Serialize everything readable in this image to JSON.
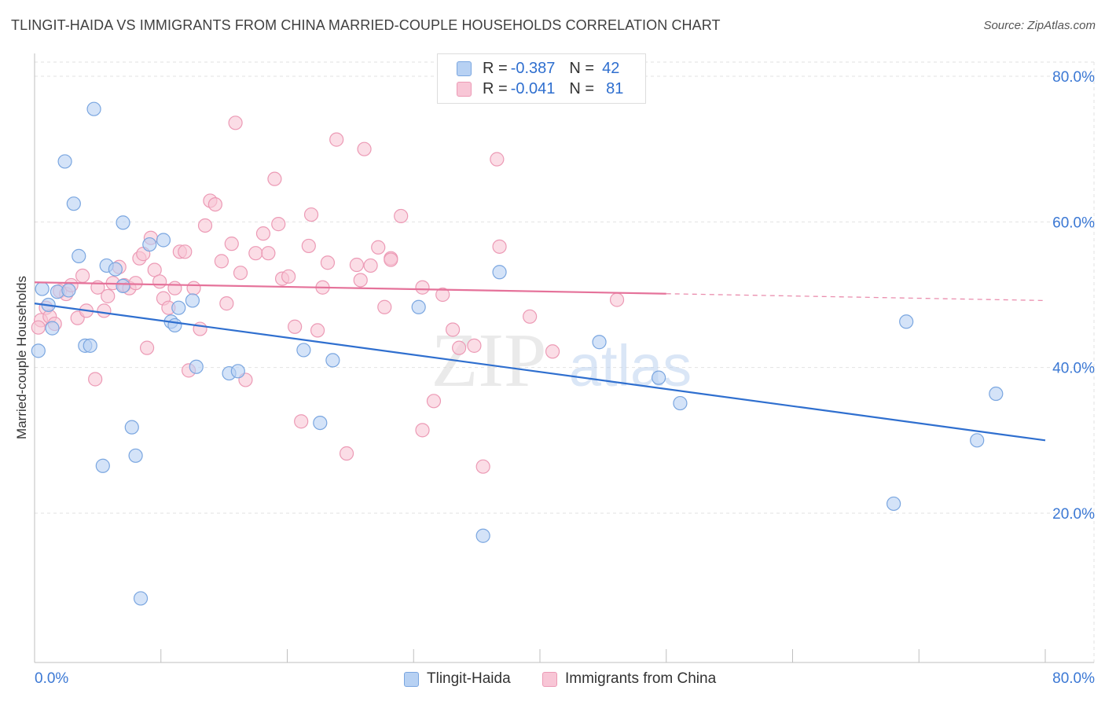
{
  "header": {
    "title": "TLINGIT-HAIDA VS IMMIGRANTS FROM CHINA MARRIED-COUPLE HOUSEHOLDS CORRELATION CHART",
    "source": "Source: ZipAtlas.com"
  },
  "watermark": {
    "zip": "ZIP",
    "atlas": "atlas"
  },
  "legend": {
    "rows": [
      {
        "r_label": "R =",
        "r_value": "-0.387",
        "n_label": "N =",
        "n_value": "42",
        "fill": "#b7d1f3",
        "stroke": "#7aa6e0"
      },
      {
        "r_label": "R =",
        "r_value": "-0.041",
        "n_label": "N =",
        "n_value": "81",
        "fill": "#f8c6d6",
        "stroke": "#ec9ab5"
      }
    ]
  },
  "bottom_legend": {
    "items": [
      {
        "label": "Tlingit-Haida",
        "fill": "#b7d1f3",
        "stroke": "#7aa6e0"
      },
      {
        "label": "Immigrants from China",
        "fill": "#f8c6d6",
        "stroke": "#ec9ab5"
      }
    ]
  },
  "chart_data": {
    "type": "scatter",
    "title": "TLINGIT-HAIDA VS IMMIGRANTS FROM CHINA MARRIED-COUPLE HOUSEHOLDS CORRELATION CHART",
    "xlabel": "",
    "ylabel": "Married-couple Households",
    "xlim": [
      0,
      80
    ],
    "ylim": [
      0,
      82
    ],
    "x_tick_labels": [
      {
        "value": 0,
        "label": "0.0%"
      },
      {
        "value": 80,
        "label": "80.0%"
      }
    ],
    "y_tick_labels": [
      {
        "value": 20,
        "label": "20.0%"
      },
      {
        "value": 40,
        "label": "40.0%"
      },
      {
        "value": 60,
        "label": "60.0%"
      },
      {
        "value": 80,
        "label": "80.0%"
      }
    ],
    "grid": true,
    "series": [
      {
        "name": "Tlingit-Haida",
        "color": "#5b93d9",
        "fill": "#b7d1f3",
        "stroke": "#7aa6e0",
        "trend": {
          "x": [
            0,
            80
          ],
          "y": [
            48.8,
            30.0
          ],
          "dashed_from": null
        },
        "points": [
          [
            0.3,
            42.3
          ],
          [
            0.6,
            50.8
          ],
          [
            1.1,
            48.6
          ],
          [
            1.4,
            45.4
          ],
          [
            1.8,
            50.4
          ],
          [
            2.4,
            68.3
          ],
          [
            2.7,
            50.6
          ],
          [
            3.1,
            62.5
          ],
          [
            3.5,
            55.3
          ],
          [
            4.0,
            43.0
          ],
          [
            4.4,
            43.0
          ],
          [
            4.7,
            75.5
          ],
          [
            5.4,
            26.5
          ],
          [
            5.7,
            54.0
          ],
          [
            6.4,
            53.5
          ],
          [
            7.0,
            51.2
          ],
          [
            7.0,
            59.9
          ],
          [
            7.7,
            31.8
          ],
          [
            8.0,
            27.9
          ],
          [
            8.4,
            8.3
          ],
          [
            9.1,
            56.9
          ],
          [
            10.2,
            57.5
          ],
          [
            10.8,
            46.3
          ],
          [
            11.1,
            45.8
          ],
          [
            11.4,
            48.2
          ],
          [
            12.5,
            49.2
          ],
          [
            12.8,
            40.1
          ],
          [
            15.4,
            39.2
          ],
          [
            16.1,
            39.5
          ],
          [
            21.3,
            42.4
          ],
          [
            22.6,
            32.4
          ],
          [
            23.6,
            41.0
          ],
          [
            30.4,
            48.3
          ],
          [
            35.5,
            16.9
          ],
          [
            36.8,
            53.1
          ],
          [
            44.7,
            43.5
          ],
          [
            49.4,
            38.6
          ],
          [
            51.1,
            35.1
          ],
          [
            69.0,
            46.3
          ],
          [
            74.6,
            30.0
          ],
          [
            76.1,
            36.4
          ],
          [
            68.0,
            21.3
          ]
        ]
      },
      {
        "name": "Immigrants from China",
        "color": "#e8799f",
        "fill": "#f8c6d6",
        "stroke": "#ec9ab5",
        "trend": {
          "x": [
            0,
            80
          ],
          "y": [
            51.7,
            49.2
          ],
          "dashed_from": 50
        },
        "points": [
          [
            0.5,
            46.5
          ],
          [
            0.9,
            48.2
          ],
          [
            1.2,
            47.0
          ],
          [
            1.6,
            46.0
          ],
          [
            2.0,
            50.5
          ],
          [
            2.5,
            50.1
          ],
          [
            2.9,
            51.3
          ],
          [
            3.4,
            46.8
          ],
          [
            3.8,
            52.6
          ],
          [
            4.1,
            47.8
          ],
          [
            4.8,
            38.4
          ],
          [
            5.0,
            51.0
          ],
          [
            5.5,
            47.8
          ],
          [
            5.8,
            49.8
          ],
          [
            6.2,
            51.6
          ],
          [
            6.7,
            53.8
          ],
          [
            7.1,
            51.3
          ],
          [
            7.5,
            50.9
          ],
          [
            8.0,
            51.6
          ],
          [
            8.3,
            55.0
          ],
          [
            8.6,
            55.6
          ],
          [
            8.9,
            42.7
          ],
          [
            9.2,
            57.8
          ],
          [
            9.5,
            53.4
          ],
          [
            9.9,
            51.8
          ],
          [
            10.2,
            49.5
          ],
          [
            10.6,
            48.2
          ],
          [
            11.1,
            50.9
          ],
          [
            11.5,
            55.9
          ],
          [
            11.9,
            55.9
          ],
          [
            12.2,
            39.6
          ],
          [
            12.6,
            50.9
          ],
          [
            13.1,
            45.3
          ],
          [
            13.5,
            59.5
          ],
          [
            13.9,
            62.9
          ],
          [
            14.3,
            62.4
          ],
          [
            14.8,
            54.6
          ],
          [
            15.2,
            48.8
          ],
          [
            15.6,
            57.0
          ],
          [
            15.9,
            73.6
          ],
          [
            16.3,
            53.0
          ],
          [
            16.7,
            38.3
          ],
          [
            17.5,
            55.7
          ],
          [
            18.1,
            58.4
          ],
          [
            18.5,
            55.7
          ],
          [
            19.0,
            65.9
          ],
          [
            19.3,
            59.7
          ],
          [
            19.6,
            52.2
          ],
          [
            20.1,
            52.5
          ],
          [
            20.6,
            45.6
          ],
          [
            21.1,
            32.6
          ],
          [
            21.7,
            56.7
          ],
          [
            21.9,
            61.0
          ],
          [
            22.4,
            45.1
          ],
          [
            22.8,
            51.0
          ],
          [
            23.2,
            54.4
          ],
          [
            23.9,
            71.3
          ],
          [
            24.7,
            28.2
          ],
          [
            25.5,
            54.1
          ],
          [
            25.8,
            52.0
          ],
          [
            26.1,
            70.0
          ],
          [
            26.6,
            54.0
          ],
          [
            27.2,
            56.5
          ],
          [
            27.7,
            48.3
          ],
          [
            28.2,
            55.0
          ],
          [
            28.2,
            54.8
          ],
          [
            29.0,
            60.8
          ],
          [
            30.7,
            51.0
          ],
          [
            30.7,
            31.4
          ],
          [
            31.6,
            35.4
          ],
          [
            32.3,
            50.0
          ],
          [
            33.1,
            45.2
          ],
          [
            33.6,
            42.7
          ],
          [
            34.8,
            43.0
          ],
          [
            35.5,
            26.4
          ],
          [
            36.6,
            68.6
          ],
          [
            36.8,
            56.6
          ],
          [
            39.2,
            47.0
          ],
          [
            41.0,
            42.2
          ],
          [
            46.1,
            49.3
          ],
          [
            0.3,
            45.5
          ]
        ]
      }
    ]
  }
}
